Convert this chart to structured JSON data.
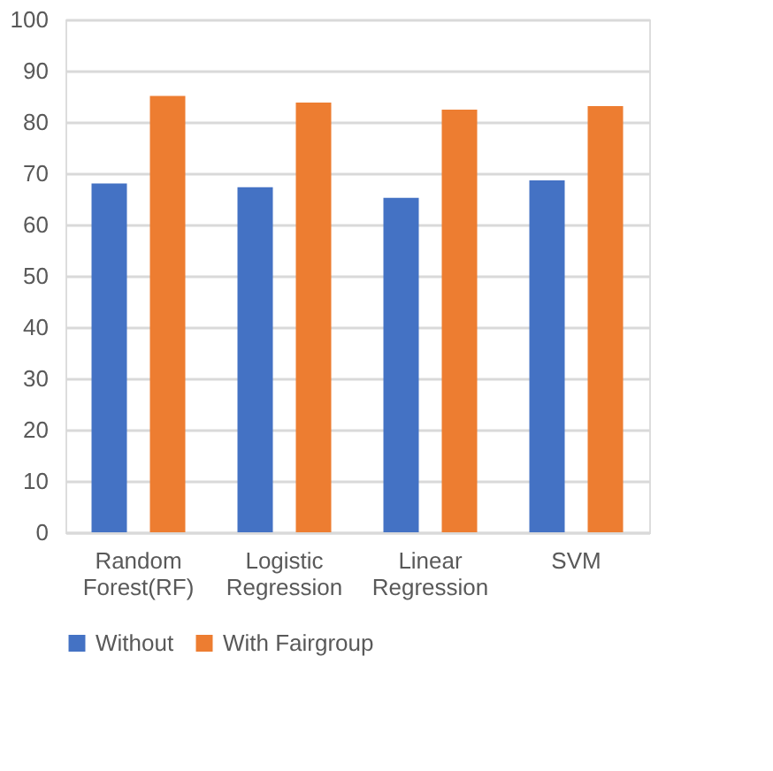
{
  "chart_data": {
    "type": "bar",
    "categories": [
      "Random Forest(RF)",
      "Logistic Regression",
      "Linear Regression",
      "SVM"
    ],
    "series": [
      {
        "name": "Without",
        "color": "#4472c4",
        "values": [
          68.0,
          67.3,
          65.2,
          68.6
        ]
      },
      {
        "name": "With Fairgroup",
        "color": "#ed7d31",
        "values": [
          85.1,
          83.8,
          82.4,
          83.1
        ]
      }
    ],
    "ylim": [
      0,
      100
    ],
    "yticks": [
      0,
      10,
      20,
      30,
      40,
      50,
      60,
      70,
      80,
      90,
      100
    ],
    "grid": "y",
    "legend": "bottom"
  }
}
